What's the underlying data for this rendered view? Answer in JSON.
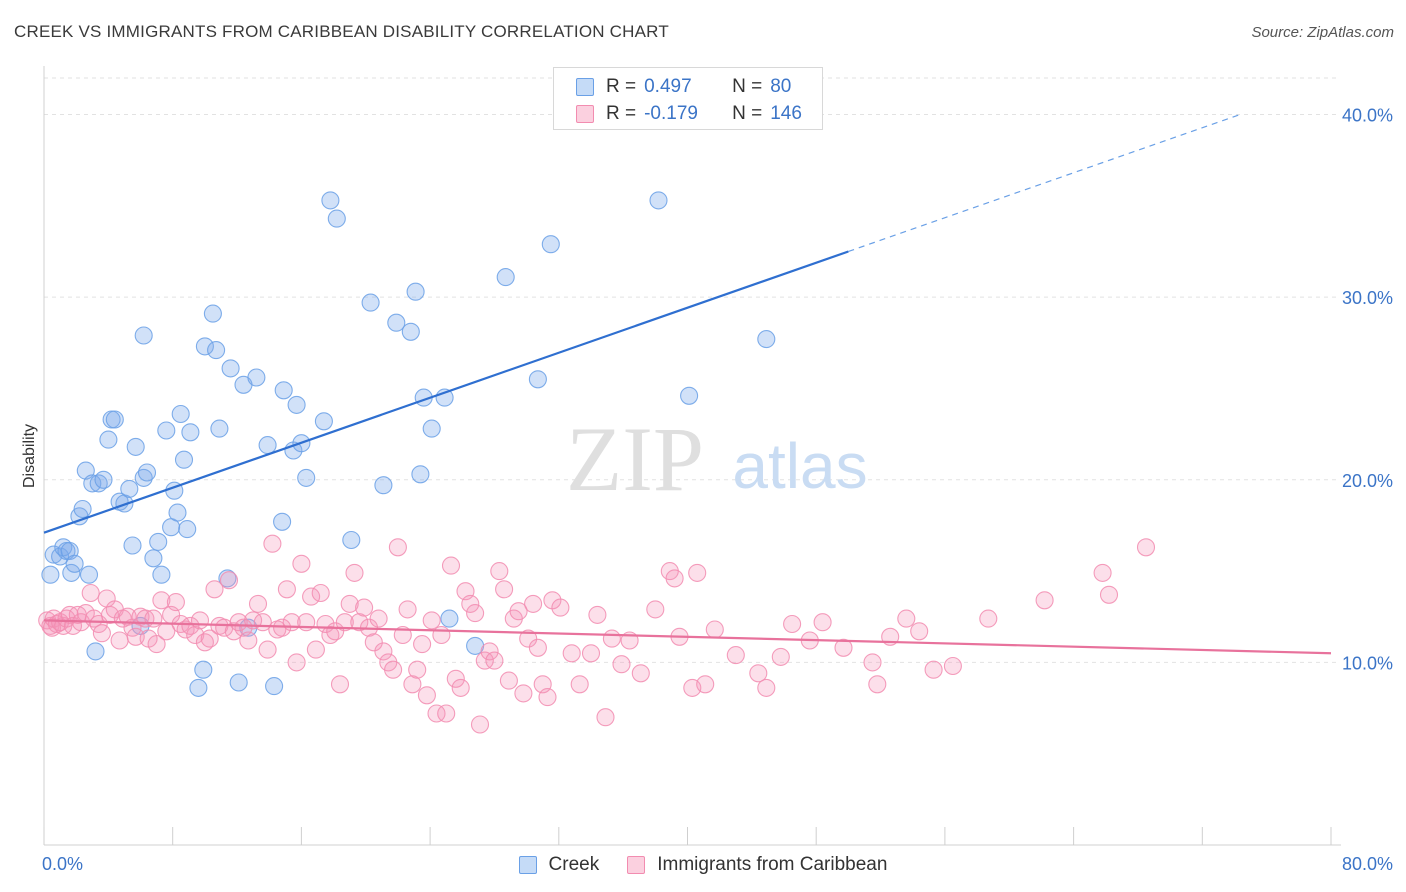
{
  "title": "CREEK VS IMMIGRANTS FROM CARIBBEAN DISABILITY CORRELATION CHART",
  "source": "Source: ZipAtlas.com",
  "watermark": {
    "zip": "ZIP",
    "atlas": "atlas"
  },
  "legend": {
    "rows": [
      {
        "r_label": "R =",
        "r_value": "0.497",
        "n_label": "N =",
        "n_value": "80",
        "color": "#6aa0e6"
      },
      {
        "r_label": "R =",
        "r_value": "-0.179",
        "n_label": "N =",
        "n_value": "146",
        "color": "#f28cb0"
      }
    ]
  },
  "bottom_legend": [
    {
      "label": "Creek",
      "color": "#6aa0e6"
    },
    {
      "label": "Immigrants from Caribbean",
      "color": "#f28cb0"
    }
  ],
  "chart_data": {
    "type": "scatter",
    "ylabel": "Disability",
    "xlim": [
      0,
      80
    ],
    "ylim": [
      0,
      42
    ],
    "x_tick_labels": [
      "0.0%",
      "80.0%"
    ],
    "y_ticks": [
      10,
      20,
      30,
      40
    ],
    "y_tick_labels": [
      "10.0%",
      "20.0%",
      "30.0%",
      "40.0%"
    ],
    "grid": true,
    "series": [
      {
        "name": "Creek",
        "color": "#6aa0e6",
        "trend": {
          "x0": 0,
          "y0": 17.1,
          "x1": 50,
          "y1": 32.5,
          "dashed_to_x": 74.5
        },
        "points": [
          [
            0.4,
            14.8
          ],
          [
            0.6,
            15.9
          ],
          [
            1.0,
            15.8
          ],
          [
            1.2,
            16.3
          ],
          [
            1.4,
            16.1
          ],
          [
            1.6,
            16.1
          ],
          [
            1.7,
            14.9
          ],
          [
            1.9,
            15.4
          ],
          [
            2.2,
            18.0
          ],
          [
            2.4,
            18.4
          ],
          [
            2.6,
            20.5
          ],
          [
            2.8,
            14.8
          ],
          [
            3.0,
            19.8
          ],
          [
            3.2,
            10.6
          ],
          [
            3.4,
            19.8
          ],
          [
            3.7,
            20.0
          ],
          [
            4.0,
            22.2
          ],
          [
            4.2,
            23.3
          ],
          [
            4.4,
            23.3
          ],
          [
            4.7,
            18.8
          ],
          [
            5.0,
            18.7
          ],
          [
            5.3,
            19.5
          ],
          [
            5.5,
            16.4
          ],
          [
            5.7,
            21.8
          ],
          [
            6.2,
            20.1
          ],
          [
            6.4,
            20.4
          ],
          [
            6.2,
            27.9
          ],
          [
            6.8,
            15.7
          ],
          [
            7.1,
            16.6
          ],
          [
            7.3,
            14.8
          ],
          [
            7.6,
            22.7
          ],
          [
            7.9,
            17.4
          ],
          [
            8.1,
            19.4
          ],
          [
            8.3,
            18.2
          ],
          [
            8.5,
            23.6
          ],
          [
            8.7,
            21.1
          ],
          [
            8.9,
            17.3
          ],
          [
            9.1,
            22.6
          ],
          [
            9.6,
            8.6
          ],
          [
            9.9,
            9.6
          ],
          [
            10.0,
            27.3
          ],
          [
            10.5,
            29.1
          ],
          [
            10.7,
            27.1
          ],
          [
            10.9,
            22.8
          ],
          [
            11.4,
            14.6
          ],
          [
            11.6,
            26.1
          ],
          [
            12.4,
            25.2
          ],
          [
            12.7,
            11.9
          ],
          [
            13.2,
            25.6
          ],
          [
            13.9,
            21.9
          ],
          [
            14.3,
            8.7
          ],
          [
            14.8,
            17.7
          ],
          [
            14.9,
            24.9
          ],
          [
            15.5,
            21.6
          ],
          [
            15.7,
            24.1
          ],
          [
            16.0,
            22.0
          ],
          [
            16.3,
            20.1
          ],
          [
            17.4,
            23.2
          ],
          [
            17.8,
            35.3
          ],
          [
            18.2,
            34.3
          ],
          [
            19.1,
            16.7
          ],
          [
            20.3,
            29.7
          ],
          [
            21.1,
            19.7
          ],
          [
            21.9,
            28.6
          ],
          [
            22.8,
            28.1
          ],
          [
            23.1,
            30.3
          ],
          [
            23.4,
            20.3
          ],
          [
            24.1,
            22.8
          ],
          [
            24.9,
            24.5
          ],
          [
            25.2,
            12.4
          ],
          [
            26.8,
            10.9
          ],
          [
            28.7,
            31.1
          ],
          [
            30.7,
            25.5
          ],
          [
            31.5,
            32.9
          ],
          [
            38.2,
            35.3
          ],
          [
            40.1,
            24.6
          ],
          [
            44.9,
            27.7
          ],
          [
            23.6,
            24.5
          ],
          [
            12.1,
            8.9
          ],
          [
            6.0,
            12.0
          ]
        ]
      },
      {
        "name": "Immigrants from Caribbean",
        "color": "#f28cb0",
        "trend": {
          "x0": 0,
          "y0": 12.3,
          "x1": 80,
          "y1": 10.5
        },
        "points": [
          [
            0.2,
            12.3
          ],
          [
            0.4,
            12.0
          ],
          [
            0.5,
            11.9
          ],
          [
            0.6,
            12.4
          ],
          [
            0.8,
            12.1
          ],
          [
            1.0,
            12.2
          ],
          [
            1.2,
            12.0
          ],
          [
            1.4,
            12.4
          ],
          [
            1.6,
            12.6
          ],
          [
            1.8,
            12.0
          ],
          [
            2.1,
            12.6
          ],
          [
            2.3,
            12.2
          ],
          [
            2.6,
            12.7
          ],
          [
            2.9,
            13.8
          ],
          [
            3.1,
            12.4
          ],
          [
            3.4,
            12.1
          ],
          [
            3.6,
            11.6
          ],
          [
            3.9,
            13.5
          ],
          [
            4.1,
            12.6
          ],
          [
            4.4,
            12.9
          ],
          [
            4.7,
            11.2
          ],
          [
            4.9,
            12.4
          ],
          [
            5.2,
            12.5
          ],
          [
            5.5,
            11.9
          ],
          [
            5.7,
            11.4
          ],
          [
            6.0,
            12.5
          ],
          [
            6.3,
            12.4
          ],
          [
            6.5,
            11.3
          ],
          [
            6.8,
            12.4
          ],
          [
            7.0,
            11.0
          ],
          [
            7.3,
            13.4
          ],
          [
            7.6,
            11.7
          ],
          [
            7.9,
            12.6
          ],
          [
            8.2,
            13.3
          ],
          [
            8.5,
            12.1
          ],
          [
            8.8,
            11.8
          ],
          [
            9.1,
            12.0
          ],
          [
            9.4,
            11.5
          ],
          [
            9.7,
            12.3
          ],
          [
            10.0,
            11.1
          ],
          [
            10.3,
            11.3
          ],
          [
            10.6,
            14.0
          ],
          [
            10.9,
            12.0
          ],
          [
            11.2,
            11.9
          ],
          [
            11.5,
            14.5
          ],
          [
            11.8,
            11.7
          ],
          [
            12.1,
            12.2
          ],
          [
            12.4,
            11.9
          ],
          [
            12.7,
            11.2
          ],
          [
            13.0,
            12.3
          ],
          [
            13.3,
            13.2
          ],
          [
            13.6,
            12.2
          ],
          [
            13.9,
            10.7
          ],
          [
            14.2,
            16.5
          ],
          [
            14.5,
            11.8
          ],
          [
            14.8,
            11.9
          ],
          [
            15.1,
            14.0
          ],
          [
            15.4,
            12.2
          ],
          [
            15.7,
            10.0
          ],
          [
            16.0,
            15.4
          ],
          [
            16.3,
            12.2
          ],
          [
            16.6,
            13.6
          ],
          [
            16.9,
            10.7
          ],
          [
            17.2,
            13.8
          ],
          [
            17.5,
            12.1
          ],
          [
            17.8,
            11.5
          ],
          [
            18.1,
            11.7
          ],
          [
            18.4,
            8.8
          ],
          [
            18.7,
            12.2
          ],
          [
            19.0,
            13.2
          ],
          [
            19.3,
            14.9
          ],
          [
            19.6,
            12.2
          ],
          [
            19.9,
            13.0
          ],
          [
            20.2,
            11.9
          ],
          [
            20.5,
            11.1
          ],
          [
            20.8,
            12.4
          ],
          [
            21.1,
            10.6
          ],
          [
            21.4,
            10.0
          ],
          [
            21.7,
            9.6
          ],
          [
            22.0,
            16.3
          ],
          [
            22.3,
            11.5
          ],
          [
            22.6,
            12.9
          ],
          [
            22.9,
            8.8
          ],
          [
            23.2,
            9.6
          ],
          [
            23.5,
            11.0
          ],
          [
            23.8,
            8.2
          ],
          [
            24.1,
            12.3
          ],
          [
            24.4,
            7.2
          ],
          [
            24.7,
            11.5
          ],
          [
            25.0,
            7.2
          ],
          [
            25.3,
            15.3
          ],
          [
            25.6,
            9.1
          ],
          [
            25.9,
            8.6
          ],
          [
            26.2,
            13.9
          ],
          [
            26.5,
            13.2
          ],
          [
            26.8,
            12.7
          ],
          [
            27.1,
            6.6
          ],
          [
            27.4,
            10.1
          ],
          [
            27.7,
            10.6
          ],
          [
            28.0,
            10.1
          ],
          [
            28.3,
            15.0
          ],
          [
            28.6,
            14.0
          ],
          [
            28.9,
            9.0
          ],
          [
            29.2,
            12.4
          ],
          [
            29.5,
            12.8
          ],
          [
            29.8,
            8.3
          ],
          [
            30.1,
            11.3
          ],
          [
            30.4,
            13.2
          ],
          [
            30.7,
            10.8
          ],
          [
            31.0,
            8.8
          ],
          [
            31.3,
            8.1
          ],
          [
            31.6,
            13.4
          ],
          [
            32.1,
            13.0
          ],
          [
            32.8,
            10.5
          ],
          [
            33.3,
            8.8
          ],
          [
            34.0,
            10.5
          ],
          [
            34.4,
            12.6
          ],
          [
            34.9,
            7.0
          ],
          [
            35.3,
            11.3
          ],
          [
            35.9,
            9.9
          ],
          [
            36.4,
            11.2
          ],
          [
            37.1,
            9.4
          ],
          [
            38.0,
            12.9
          ],
          [
            38.9,
            15.0
          ],
          [
            39.5,
            11.4
          ],
          [
            40.3,
            8.6
          ],
          [
            41.1,
            8.8
          ],
          [
            41.7,
            11.8
          ],
          [
            43.0,
            10.4
          ],
          [
            44.4,
            9.4
          ],
          [
            44.9,
            8.6
          ],
          [
            45.8,
            10.3
          ],
          [
            46.5,
            12.1
          ],
          [
            47.6,
            11.2
          ],
          [
            48.4,
            12.2
          ],
          [
            49.7,
            10.8
          ],
          [
            51.5,
            10.0
          ],
          [
            51.8,
            8.8
          ],
          [
            52.6,
            11.4
          ],
          [
            53.6,
            12.4
          ],
          [
            54.4,
            11.7
          ],
          [
            55.3,
            9.6
          ],
          [
            56.5,
            9.8
          ],
          [
            58.7,
            12.4
          ],
          [
            62.2,
            13.4
          ],
          [
            65.8,
            14.9
          ],
          [
            66.2,
            13.7
          ],
          [
            68.5,
            16.3
          ],
          [
            40.6,
            14.9
          ],
          [
            39.2,
            14.6
          ]
        ]
      }
    ]
  }
}
